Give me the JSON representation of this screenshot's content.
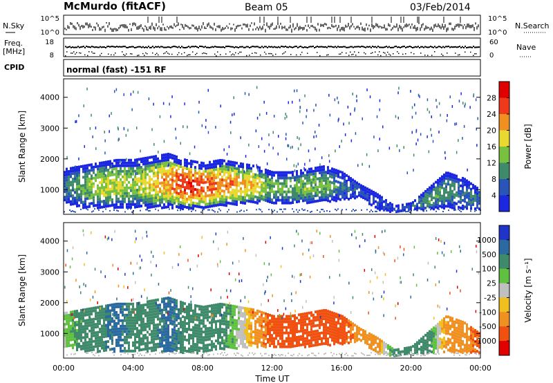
{
  "header": {
    "title": "McMurdo (fitACF)",
    "beam": "Beam 05",
    "date": "03/Feb/2014"
  },
  "strip": {
    "nsky_label": "N.Sky",
    "nsearch_label": "N.Search",
    "freq_label": "Freq.",
    "freq_unit": "[MHz]",
    "nave_label": "Nave",
    "cpid_label": "CPID",
    "cpid_value": "normal (fast) -151 RF",
    "left_ticks_top": [
      "10^5",
      "10^0"
    ],
    "right_ticks_top": [
      "10^5",
      "10^0"
    ],
    "left_ticks_freq": [
      "18",
      "8"
    ],
    "right_ticks_nave": [
      "60",
      "0"
    ]
  },
  "chart_data": [
    {
      "type": "heatmap",
      "name": "power-panel",
      "ylabel": "Slant Range [km]",
      "ylim": [
        200,
        4600
      ],
      "yticks": [
        1000,
        2000,
        3000,
        4000
      ],
      "xlim": [
        0,
        24
      ],
      "colorbar_label": "Power [dB]",
      "colorbar_ticks": [
        "4",
        "8",
        "12",
        "16",
        "20",
        "24",
        "28"
      ],
      "colorbar_colors": [
        "#1b28e0",
        "#2a55b8",
        "#3f8a6a",
        "#78c040",
        "#e8d830",
        "#f09020",
        "#ee3a1a",
        "#e00000"
      ],
      "echo_band": {
        "hours": [
          0,
          1,
          2,
          3,
          4,
          5,
          6,
          7,
          8,
          9,
          10,
          11,
          12,
          13,
          14,
          15,
          16,
          17,
          18,
          19,
          20,
          21,
          22,
          23,
          24
        ],
        "bottom_km": [
          600,
          450,
          450,
          450,
          450,
          450,
          450,
          400,
          400,
          500,
          550,
          600,
          600,
          600,
          600,
          650,
          700,
          800,
          400,
          300,
          350,
          400,
          450,
          400,
          400
        ],
        "top_km": [
          1700,
          1800,
          1900,
          2000,
          2000,
          2100,
          2200,
          2000,
          1900,
          2000,
          1900,
          1800,
          1600,
          1600,
          1700,
          1800,
          1600,
          1200,
          900,
          500,
          600,
          1100,
          1600,
          1400,
          1000
        ],
        "peak_db": [
          10,
          14,
          18,
          18,
          16,
          20,
          24,
          28,
          26,
          24,
          22,
          20,
          14,
          14,
          16,
          14,
          10,
          8,
          6,
          6,
          8,
          14,
          12,
          10,
          10
        ]
      }
    },
    {
      "type": "heatmap",
      "name": "velocity-panel",
      "ylabel": "Slant Range [km]",
      "ylim": [
        200,
        4600
      ],
      "yticks": [
        1000,
        2000,
        3000,
        4000
      ],
      "xlim": [
        0,
        24
      ],
      "xticks": [
        "00:00",
        "04:00",
        "08:00",
        "12:00",
        "16:00",
        "20:00",
        "00:00"
      ],
      "xlabel": "Time UT",
      "colorbar_label": "Velocity [m s⁻¹]",
      "colorbar_ticks": [
        "1000",
        "500",
        "100",
        "25",
        "-25",
        "-100",
        "-500",
        "-1000"
      ],
      "colorbar_colors": [
        "#2035c8",
        "#2a6aa0",
        "#3f8a6a",
        "#60c040",
        "#c0c0c0",
        "#f0c020",
        "#f09020",
        "#f05010",
        "#e00000"
      ],
      "echo_band": {
        "hours": [
          0,
          1,
          2,
          3,
          4,
          5,
          6,
          7,
          8,
          9,
          10,
          11,
          12,
          13,
          14,
          15,
          16,
          17,
          18,
          19,
          20,
          21,
          22,
          23,
          24
        ],
        "bottom_km": [
          600,
          450,
          450,
          450,
          450,
          450,
          450,
          400,
          400,
          500,
          550,
          600,
          600,
          600,
          600,
          650,
          700,
          800,
          400,
          300,
          350,
          400,
          450,
          400,
          400
        ],
        "top_km": [
          1700,
          1800,
          1900,
          2000,
          2000,
          2100,
          2200,
          2000,
          1900,
          2000,
          1900,
          1800,
          1600,
          1600,
          1700,
          1800,
          1600,
          1200,
          900,
          500,
          600,
          1100,
          1600,
          1400,
          1000
        ],
        "velocity_ms": [
          25,
          100,
          100,
          500,
          100,
          100,
          500,
          100,
          100,
          100,
          25,
          -100,
          -500,
          -500,
          -500,
          -500,
          -500,
          -100,
          -100,
          100,
          100,
          100,
          -100,
          -100,
          -500
        ]
      }
    }
  ]
}
